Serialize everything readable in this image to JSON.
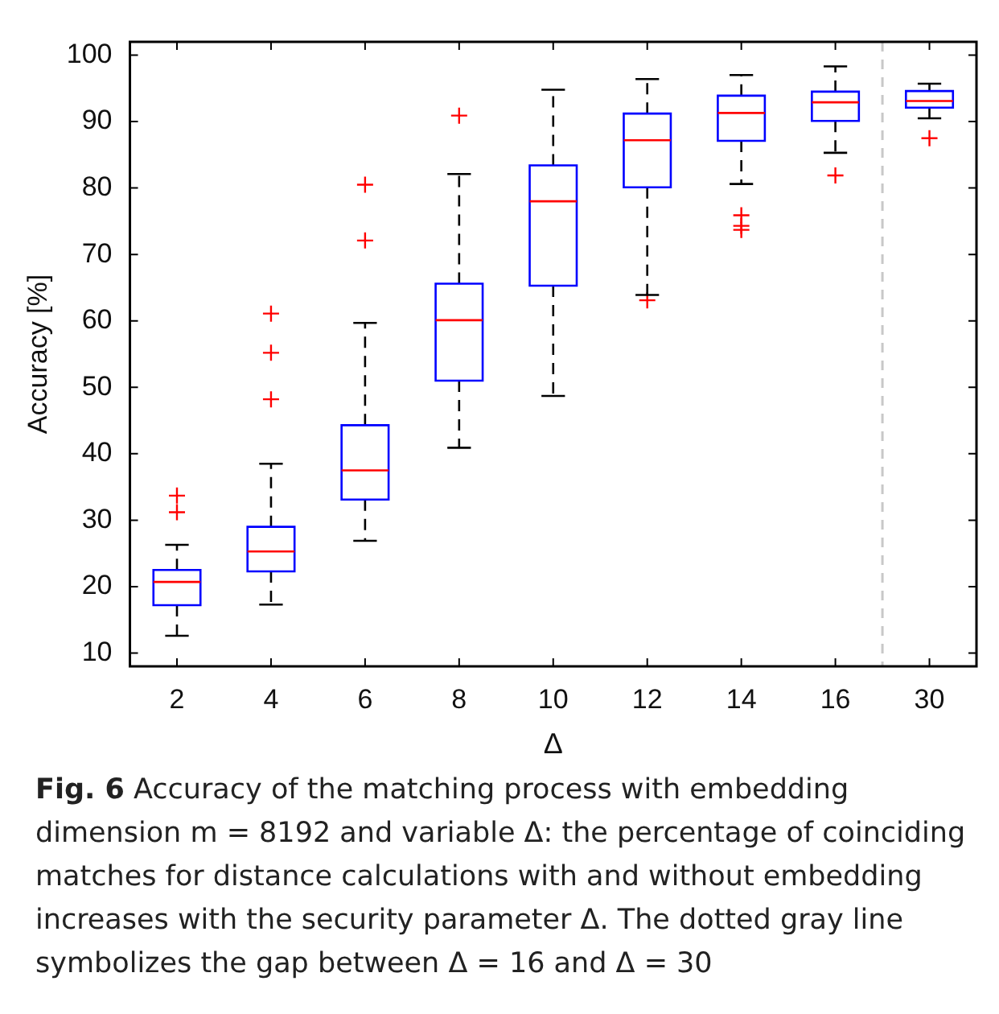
{
  "chart_data": {
    "type": "box",
    "title": "Fig. 6",
    "annotations": [
      "Accuracy of the matching process with embedding dimension m = 8192 and variable Δ: the percentage of coinciding matches for distance calculations with and without embedding increases with the security parameter Δ. The dotted gray line symbolizes the gap between Δ = 16 and Δ = 30"
    ],
    "xlabel": "Δ",
    "ylabel": "Accuracy [%]",
    "categories": [
      "2",
      "4",
      "6",
      "8",
      "10",
      "12",
      "14",
      "16",
      "30"
    ],
    "boxes": [
      {
        "low": 12.6,
        "q1": 17.2,
        "median": 20.7,
        "q3": 22.5,
        "high": 26.3,
        "outliers": [
          33.7,
          31.2
        ]
      },
      {
        "low": 17.3,
        "q1": 22.3,
        "median": 25.3,
        "q3": 29.0,
        "high": 38.5,
        "outliers": [
          61.1,
          55.2,
          48.2
        ]
      },
      {
        "low": 26.9,
        "q1": 33.1,
        "median": 37.5,
        "q3": 44.3,
        "high": 59.7,
        "outliers": [
          80.5,
          72.1
        ]
      },
      {
        "low": 40.9,
        "q1": 51.0,
        "median": 60.1,
        "q3": 65.6,
        "high": 82.1,
        "outliers": [
          90.9
        ]
      },
      {
        "low": 48.7,
        "q1": 65.3,
        "median": 78.0,
        "q3": 83.4,
        "high": 94.8
      },
      {
        "low": 63.9,
        "q1": 80.1,
        "median": 87.2,
        "q3": 91.2,
        "high": 96.4,
        "outliers": [
          63.1
        ]
      },
      {
        "low": 80.6,
        "q1": 87.1,
        "median": 91.3,
        "q3": 93.9,
        "high": 97.0,
        "outliers": [
          75.9,
          74.3,
          73.7
        ]
      },
      {
        "low": 85.3,
        "q1": 90.1,
        "median": 92.9,
        "q3": 94.5,
        "high": 98.3,
        "outliers": [
          81.9
        ]
      },
      {
        "low": 90.5,
        "q1": 92.1,
        "median": 93.1,
        "q3": 94.6,
        "high": 95.7,
        "outliers": [
          87.5
        ]
      }
    ],
    "ylim": [
      8,
      102
    ],
    "yticks": [
      10,
      20,
      30,
      40,
      50,
      60,
      70,
      80,
      90,
      100
    ],
    "marker": "cross"
  }
}
